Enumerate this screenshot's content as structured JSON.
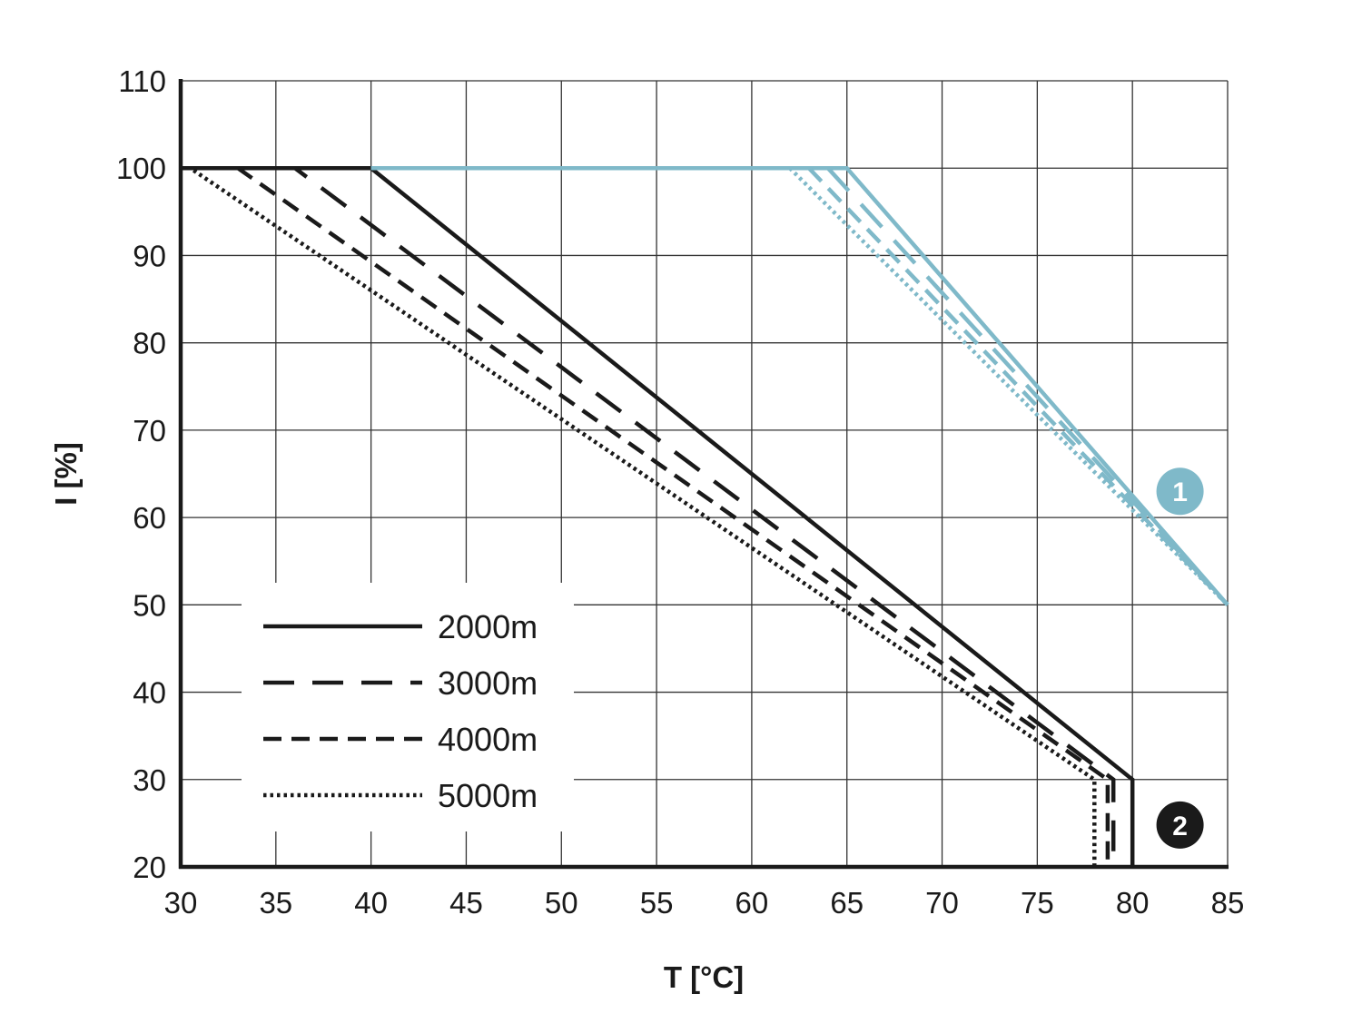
{
  "chart_data": {
    "type": "line",
    "xlabel": "T [°C]",
    "ylabel": "I [%]",
    "xlim": [
      30,
      85
    ],
    "ylim": [
      20,
      110
    ],
    "xticks": [
      30,
      35,
      40,
      45,
      50,
      55,
      60,
      65,
      70,
      75,
      80,
      85
    ],
    "yticks": [
      20,
      30,
      40,
      50,
      60,
      70,
      80,
      90,
      100,
      110
    ],
    "grid": true,
    "legend": {
      "placement": "bottom-left",
      "entries": [
        "2000m",
        "3000m",
        "4000m",
        "5000m"
      ]
    },
    "colors": {
      "black": "#1a1a1a",
      "blue": "#7fb9c9"
    },
    "series": [
      {
        "name": "2000m",
        "group": "2",
        "color": "#1a1a1a",
        "style": "solid",
        "x": [
          30,
          40,
          80,
          80
        ],
        "y": [
          100,
          100,
          30,
          20
        ]
      },
      {
        "name": "3000m",
        "group": "2",
        "color": "#1a1a1a",
        "style": "dashed",
        "x": [
          30,
          36,
          79,
          79
        ],
        "y": [
          100,
          100,
          30,
          20
        ]
      },
      {
        "name": "4000m",
        "group": "2",
        "color": "#1a1a1a",
        "style": "short-dashed",
        "x": [
          30,
          33,
          78.7,
          78.7
        ],
        "y": [
          100,
          100,
          30,
          20
        ]
      },
      {
        "name": "5000m",
        "group": "2",
        "color": "#1a1a1a",
        "style": "dotted",
        "x": [
          30,
          30.5,
          78,
          78
        ],
        "y": [
          100,
          100,
          30,
          20
        ]
      },
      {
        "name": "2000m",
        "group": "1",
        "color": "#7fb9c9",
        "style": "solid",
        "x": [
          40,
          65,
          85
        ],
        "y": [
          100,
          100,
          50
        ]
      },
      {
        "name": "3000m",
        "group": "1",
        "color": "#7fb9c9",
        "style": "dashed",
        "x": [
          64,
          85
        ],
        "y": [
          100,
          50
        ]
      },
      {
        "name": "4000m",
        "group": "1",
        "color": "#7fb9c9",
        "style": "short-dashed",
        "x": [
          63,
          85
        ],
        "y": [
          100,
          50
        ]
      },
      {
        "name": "5000m",
        "group": "1",
        "color": "#7fb9c9",
        "style": "dotted",
        "x": [
          62,
          85
        ],
        "y": [
          100,
          50
        ]
      }
    ],
    "markers": [
      {
        "label": "1",
        "x": 82.5,
        "y": 63,
        "color": "#7fb9c9"
      },
      {
        "label": "2",
        "x": 82.5,
        "y": 24.8,
        "color": "#1a1a1a"
      }
    ]
  }
}
